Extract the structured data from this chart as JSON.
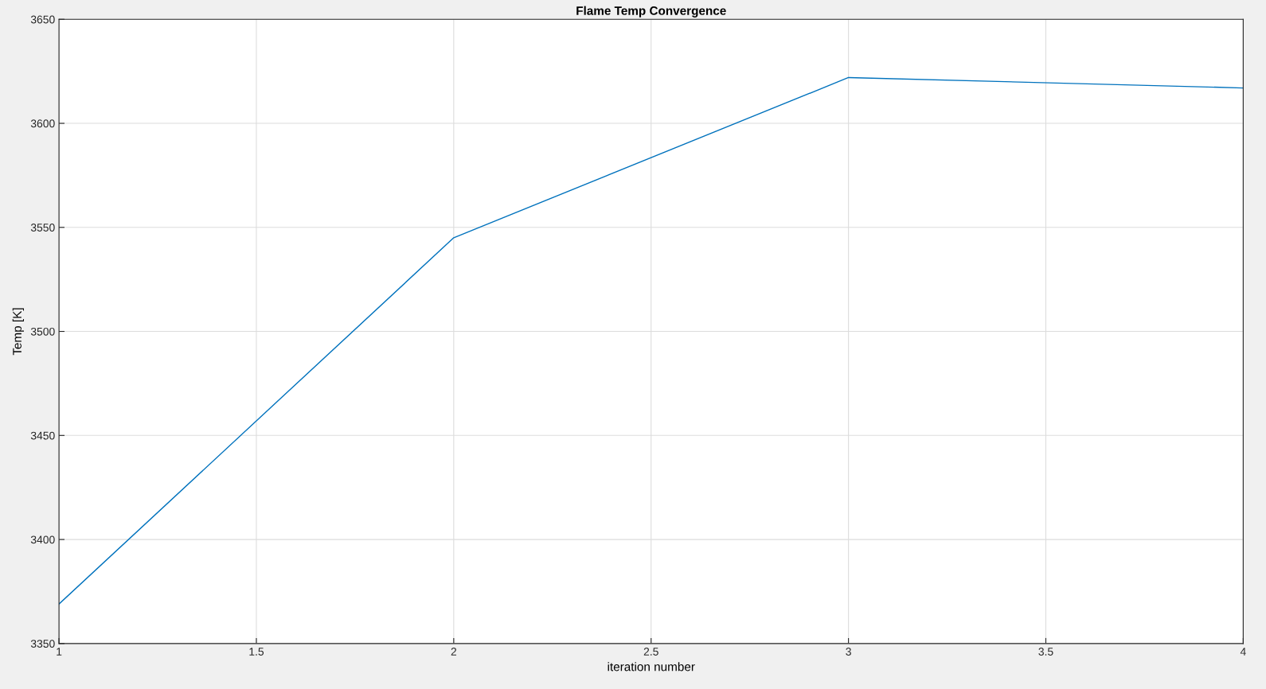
{
  "chart_data": {
    "type": "line",
    "title": "Flame Temp Convergence",
    "xlabel": "iteration number",
    "ylabel": "Temp [K]",
    "x": [
      1,
      2,
      3,
      4
    ],
    "series": [
      {
        "color": "#0072bd",
        "values": [
          3369,
          3545,
          3622,
          3617
        ]
      }
    ],
    "xlim": [
      1,
      4
    ],
    "xticks": [
      1,
      1.5,
      2,
      2.5,
      3,
      3.5,
      4
    ],
    "ylim": [
      3350,
      3650
    ],
    "yticks": [
      3350,
      3400,
      3450,
      3500,
      3550,
      3600,
      3650
    ],
    "grid": true,
    "marker": "none",
    "line_style": "solid",
    "legend": false
  }
}
